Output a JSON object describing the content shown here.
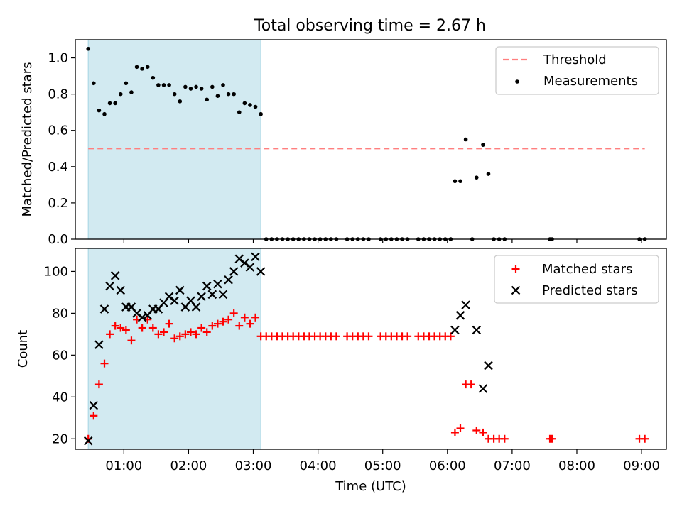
{
  "title": "Total observing time = 2.67 h",
  "shade_color": "#add8e6",
  "chart_data": [
    {
      "type": "scatter",
      "ylabel": "Matched/Predicted stars",
      "ylim": [
        0,
        1.1
      ],
      "yticks": [
        0.0,
        0.2,
        0.4,
        0.6,
        0.8,
        1.0
      ],
      "ytick_labels": [
        "0.0",
        "0.2",
        "0.4",
        "0.6",
        "0.8",
        "1.0"
      ],
      "shaded_region": [
        "00:27",
        "03:07"
      ],
      "threshold": {
        "name": "Threshold",
        "value": 0.5,
        "color": "#ff7f7f",
        "x_range": [
          "00:27",
          "09:03"
        ]
      },
      "series": [
        {
          "name": "Measurements",
          "color": "#000000",
          "marker": "dot",
          "points": [
            [
              "00:27",
              1.05
            ],
            [
              "00:32",
              0.86
            ],
            [
              "00:37",
              0.71
            ],
            [
              "00:42",
              0.69
            ],
            [
              "00:47",
              0.75
            ],
            [
              "00:52",
              0.75
            ],
            [
              "00:57",
              0.8
            ],
            [
              "01:02",
              0.86
            ],
            [
              "01:07",
              0.81
            ],
            [
              "01:12",
              0.95
            ],
            [
              "01:17",
              0.94
            ],
            [
              "01:22",
              0.95
            ],
            [
              "01:27",
              0.89
            ],
            [
              "01:32",
              0.85
            ],
            [
              "01:37",
              0.85
            ],
            [
              "01:42",
              0.85
            ],
            [
              "01:47",
              0.8
            ],
            [
              "01:52",
              0.76
            ],
            [
              "01:57",
              0.84
            ],
            [
              "02:02",
              0.83
            ],
            [
              "02:07",
              0.84
            ],
            [
              "02:12",
              0.83
            ],
            [
              "02:17",
              0.77
            ],
            [
              "02:22",
              0.84
            ],
            [
              "02:27",
              0.79
            ],
            [
              "02:32",
              0.85
            ],
            [
              "02:37",
              0.8
            ],
            [
              "02:42",
              0.8
            ],
            [
              "02:47",
              0.7
            ],
            [
              "02:52",
              0.75
            ],
            [
              "02:57",
              0.74
            ],
            [
              "03:02",
              0.73
            ],
            [
              "03:07",
              0.69
            ],
            [
              "03:12",
              0.0
            ],
            [
              "03:17",
              0.0
            ],
            [
              "03:22",
              0.0
            ],
            [
              "03:27",
              0.0
            ],
            [
              "03:32",
              0.0
            ],
            [
              "03:37",
              0.0
            ],
            [
              "03:42",
              0.0
            ],
            [
              "03:47",
              0.0
            ],
            [
              "03:52",
              0.0
            ],
            [
              "03:57",
              0.0
            ],
            [
              "04:02",
              0.0
            ],
            [
              "04:07",
              0.0
            ],
            [
              "04:12",
              0.0
            ],
            [
              "04:17",
              0.0
            ],
            [
              "04:27",
              0.0
            ],
            [
              "04:32",
              0.0
            ],
            [
              "04:37",
              0.0
            ],
            [
              "04:42",
              0.0
            ],
            [
              "04:47",
              0.0
            ],
            [
              "04:58",
              0.0
            ],
            [
              "05:03",
              0.0
            ],
            [
              "05:08",
              0.0
            ],
            [
              "05:13",
              0.0
            ],
            [
              "05:18",
              0.0
            ],
            [
              "05:23",
              0.0
            ],
            [
              "05:33",
              0.0
            ],
            [
              "05:38",
              0.0
            ],
            [
              "05:43",
              0.0
            ],
            [
              "05:48",
              0.0
            ],
            [
              "05:53",
              0.0
            ],
            [
              "05:58",
              0.0
            ],
            [
              "06:03",
              0.0
            ],
            [
              "06:07",
              0.32
            ],
            [
              "06:12",
              0.32
            ],
            [
              "06:17",
              0.55
            ],
            [
              "06:23",
              0.0
            ],
            [
              "06:27",
              0.34
            ],
            [
              "06:33",
              0.52
            ],
            [
              "06:38",
              0.36
            ],
            [
              "06:43",
              0.0
            ],
            [
              "06:48",
              0.0
            ],
            [
              "06:53",
              0.0
            ],
            [
              "07:35",
              0.0
            ],
            [
              "07:37",
              0.0
            ],
            [
              "08:58",
              0.0
            ],
            [
              "09:03",
              0.0
            ]
          ]
        }
      ]
    },
    {
      "type": "scatter",
      "xlabel": "Time (UTC)",
      "ylabel": "Count",
      "ylim": [
        15,
        111
      ],
      "yticks": [
        20,
        40,
        60,
        80,
        100
      ],
      "ytick_labels": [
        "20",
        "40",
        "60",
        "80",
        "100"
      ],
      "xlim": [
        "00:15",
        "09:23"
      ],
      "xticks": [
        "01:00",
        "02:00",
        "03:00",
        "04:00",
        "05:00",
        "06:00",
        "07:00",
        "08:00",
        "09:00"
      ],
      "shaded_region": [
        "00:27",
        "03:07"
      ],
      "series": [
        {
          "name": "Matched stars",
          "color": "#ff0000",
          "marker": "plus",
          "points": [
            [
              "00:27",
              20
            ],
            [
              "00:32",
              31
            ],
            [
              "00:37",
              46
            ],
            [
              "00:42",
              56
            ],
            [
              "00:47",
              70
            ],
            [
              "00:52",
              74
            ],
            [
              "00:57",
              73
            ],
            [
              "01:02",
              72
            ],
            [
              "01:07",
              67
            ],
            [
              "01:12",
              77
            ],
            [
              "01:17",
              73
            ],
            [
              "01:22",
              77
            ],
            [
              "01:27",
              73
            ],
            [
              "01:32",
              70
            ],
            [
              "01:37",
              71
            ],
            [
              "01:42",
              75
            ],
            [
              "01:47",
              68
            ],
            [
              "01:52",
              69
            ],
            [
              "01:57",
              70
            ],
            [
              "02:02",
              71
            ],
            [
              "02:07",
              70
            ],
            [
              "02:12",
              73
            ],
            [
              "02:17",
              71
            ],
            [
              "02:22",
              74
            ],
            [
              "02:27",
              75
            ],
            [
              "02:32",
              76
            ],
            [
              "02:37",
              77
            ],
            [
              "02:42",
              80
            ],
            [
              "02:47",
              74
            ],
            [
              "02:52",
              78
            ],
            [
              "02:57",
              75
            ],
            [
              "03:02",
              78
            ],
            [
              "03:07",
              69
            ],
            [
              "03:12",
              69
            ],
            [
              "03:17",
              69
            ],
            [
              "03:22",
              69
            ],
            [
              "03:27",
              69
            ],
            [
              "03:32",
              69
            ],
            [
              "03:37",
              69
            ],
            [
              "03:42",
              69
            ],
            [
              "03:47",
              69
            ],
            [
              "03:52",
              69
            ],
            [
              "03:57",
              69
            ],
            [
              "04:02",
              69
            ],
            [
              "04:07",
              69
            ],
            [
              "04:12",
              69
            ],
            [
              "04:17",
              69
            ],
            [
              "04:27",
              69
            ],
            [
              "04:32",
              69
            ],
            [
              "04:37",
              69
            ],
            [
              "04:42",
              69
            ],
            [
              "04:47",
              69
            ],
            [
              "04:58",
              69
            ],
            [
              "05:03",
              69
            ],
            [
              "05:08",
              69
            ],
            [
              "05:13",
              69
            ],
            [
              "05:18",
              69
            ],
            [
              "05:23",
              69
            ],
            [
              "05:33",
              69
            ],
            [
              "05:38",
              69
            ],
            [
              "05:43",
              69
            ],
            [
              "05:48",
              69
            ],
            [
              "05:53",
              69
            ],
            [
              "05:58",
              69
            ],
            [
              "06:03",
              69
            ],
            [
              "06:07",
              23
            ],
            [
              "06:12",
              25
            ],
            [
              "06:17",
              46
            ],
            [
              "06:22",
              46
            ],
            [
              "06:27",
              24
            ],
            [
              "06:33",
              23
            ],
            [
              "06:38",
              20
            ],
            [
              "06:43",
              20
            ],
            [
              "06:48",
              20
            ],
            [
              "06:53",
              20
            ],
            [
              "07:35",
              20
            ],
            [
              "07:37",
              20
            ],
            [
              "08:58",
              20
            ],
            [
              "09:03",
              20
            ]
          ]
        },
        {
          "name": "Predicted stars",
          "color": "#000000",
          "marker": "x",
          "points": [
            [
              "00:27",
              19
            ],
            [
              "00:32",
              36
            ],
            [
              "00:37",
              65
            ],
            [
              "00:42",
              82
            ],
            [
              "00:47",
              93
            ],
            [
              "00:52",
              98
            ],
            [
              "00:57",
              91
            ],
            [
              "01:02",
              83
            ],
            [
              "01:07",
              83
            ],
            [
              "01:12",
              80
            ],
            [
              "01:17",
              78
            ],
            [
              "01:22",
              79
            ],
            [
              "01:27",
              82
            ],
            [
              "01:32",
              82
            ],
            [
              "01:37",
              85
            ],
            [
              "01:42",
              88
            ],
            [
              "01:47",
              86
            ],
            [
              "01:52",
              91
            ],
            [
              "01:57",
              83
            ],
            [
              "02:02",
              86
            ],
            [
              "02:07",
              83
            ],
            [
              "02:12",
              88
            ],
            [
              "02:17",
              93
            ],
            [
              "02:22",
              89
            ],
            [
              "02:27",
              94
            ],
            [
              "02:32",
              89
            ],
            [
              "02:37",
              96
            ],
            [
              "02:42",
              100
            ],
            [
              "02:47",
              106
            ],
            [
              "02:52",
              104
            ],
            [
              "02:57",
              102
            ],
            [
              "03:02",
              107
            ],
            [
              "03:07",
              100
            ],
            [
              "06:07",
              72
            ],
            [
              "06:12",
              79
            ],
            [
              "06:17",
              84
            ],
            [
              "06:27",
              72
            ],
            [
              "06:33",
              44
            ],
            [
              "06:38",
              55
            ]
          ]
        }
      ]
    }
  ]
}
